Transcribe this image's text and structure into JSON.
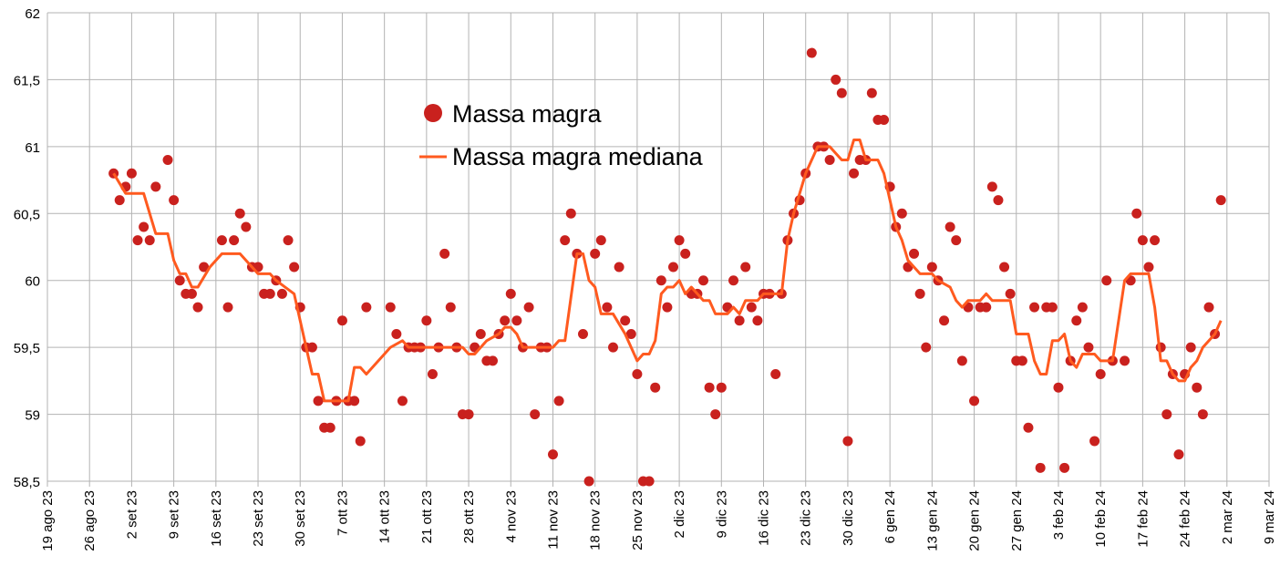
{
  "chart_data": {
    "type": "scatter",
    "title": "",
    "xlabel": "",
    "ylabel": "",
    "x_unit": "days since 19 ago 23",
    "xlim": [
      0,
      203
    ],
    "ylim": [
      58.5,
      62
    ],
    "grid": true,
    "legend_position": "top-center",
    "y_ticks": [
      "58,5",
      "59",
      "59,5",
      "60",
      "60,5",
      "61",
      "61,5",
      "62"
    ],
    "y_tick_values": [
      58.5,
      59,
      59.5,
      60,
      60.5,
      61,
      61.5,
      62
    ],
    "x_ticks": [
      "19 ago 23",
      "26 ago 23",
      "2 set 23",
      "9 set 23",
      "16 set 23",
      "23 set 23",
      "30 set 23",
      "7 ott 23",
      "14 ott 23",
      "21 ott 23",
      "28 ott 23",
      "4 nov 23",
      "11 nov 23",
      "18 nov 23",
      "25 nov 23",
      "2 dic 23",
      "9 dic 23",
      "16 dic 23",
      "23 dic 23",
      "30 dic 23",
      "6 gen 24",
      "13 gen 24",
      "20 gen 24",
      "27 gen 24",
      "3 feb 24",
      "10 feb 24",
      "17 feb 24",
      "24 feb 24",
      "2 mar 24",
      "9 mar 24"
    ],
    "colors": {
      "points": "#c9211e",
      "median": "#ff5a1f",
      "grid": "#b3b3b3"
    },
    "series": [
      {
        "name": "Massa magra",
        "kind": "scatter",
        "points": [
          [
            11,
            60.8
          ],
          [
            12,
            60.6
          ],
          [
            13,
            60.7
          ],
          [
            14,
            60.8
          ],
          [
            15,
            60.3
          ],
          [
            16,
            60.4
          ],
          [
            17,
            60.3
          ],
          [
            18,
            60.7
          ],
          [
            20,
            60.9
          ],
          [
            21,
            60.6
          ],
          [
            22,
            60.0
          ],
          [
            23,
            59.9
          ],
          [
            24,
            59.9
          ],
          [
            25,
            59.8
          ],
          [
            26,
            60.1
          ],
          [
            29,
            60.3
          ],
          [
            30,
            59.8
          ],
          [
            31,
            60.3
          ],
          [
            32,
            60.5
          ],
          [
            33,
            60.4
          ],
          [
            34,
            60.1
          ],
          [
            35,
            60.1
          ],
          [
            36,
            59.9
          ],
          [
            37,
            59.9
          ],
          [
            38,
            60.0
          ],
          [
            39,
            59.9
          ],
          [
            40,
            60.3
          ],
          [
            41,
            60.1
          ],
          [
            42,
            59.8
          ],
          [
            43,
            59.5
          ],
          [
            44,
            59.5
          ],
          [
            45,
            59.1
          ],
          [
            46,
            58.9
          ],
          [
            47,
            58.9
          ],
          [
            48,
            59.1
          ],
          [
            49,
            59.7
          ],
          [
            50,
            59.1
          ],
          [
            51,
            59.1
          ],
          [
            52,
            58.8
          ],
          [
            53,
            59.8
          ],
          [
            57,
            59.8
          ],
          [
            58,
            59.6
          ],
          [
            59,
            59.1
          ],
          [
            60,
            59.5
          ],
          [
            61,
            59.5
          ],
          [
            62,
            59.5
          ],
          [
            63,
            59.7
          ],
          [
            64,
            59.3
          ],
          [
            65,
            59.5
          ],
          [
            66,
            60.2
          ],
          [
            67,
            59.8
          ],
          [
            68,
            59.5
          ],
          [
            69,
            59.0
          ],
          [
            70,
            59.0
          ],
          [
            71,
            59.5
          ],
          [
            72,
            59.6
          ],
          [
            73,
            59.4
          ],
          [
            74,
            59.4
          ],
          [
            75,
            59.6
          ],
          [
            76,
            59.7
          ],
          [
            77,
            59.9
          ],
          [
            78,
            59.7
          ],
          [
            79,
            59.5
          ],
          [
            80,
            59.8
          ],
          [
            81,
            59.0
          ],
          [
            82,
            59.5
          ],
          [
            83,
            59.5
          ],
          [
            84,
            58.7
          ],
          [
            85,
            59.1
          ],
          [
            86,
            60.3
          ],
          [
            87,
            60.5
          ],
          [
            88,
            60.2
          ],
          [
            89,
            59.6
          ],
          [
            90,
            58.5
          ],
          [
            91,
            60.2
          ],
          [
            92,
            60.3
          ],
          [
            93,
            59.8
          ],
          [
            94,
            59.5
          ],
          [
            95,
            60.1
          ],
          [
            96,
            59.7
          ],
          [
            97,
            59.6
          ],
          [
            98,
            59.3
          ],
          [
            99,
            58.5
          ],
          [
            100,
            58.5
          ],
          [
            101,
            59.2
          ],
          [
            102,
            60.0
          ],
          [
            103,
            59.8
          ],
          [
            104,
            60.1
          ],
          [
            105,
            60.3
          ],
          [
            106,
            60.2
          ],
          [
            107,
            59.9
          ],
          [
            108,
            59.9
          ],
          [
            109,
            60.0
          ],
          [
            110,
            59.2
          ],
          [
            111,
            59.0
          ],
          [
            112,
            59.2
          ],
          [
            113,
            59.8
          ],
          [
            114,
            60.0
          ],
          [
            115,
            59.7
          ],
          [
            116,
            60.1
          ],
          [
            117,
            59.8
          ],
          [
            118,
            59.7
          ],
          [
            119,
            59.9
          ],
          [
            120,
            59.9
          ],
          [
            121,
            59.3
          ],
          [
            122,
            59.9
          ],
          [
            123,
            60.3
          ],
          [
            124,
            60.5
          ],
          [
            125,
            60.6
          ],
          [
            126,
            60.8
          ],
          [
            127,
            61.7
          ],
          [
            128,
            61.0
          ],
          [
            129,
            61.0
          ],
          [
            130,
            60.9
          ],
          [
            131,
            61.5
          ],
          [
            132,
            61.4
          ],
          [
            133,
            58.8
          ],
          [
            134,
            60.8
          ],
          [
            135,
            60.9
          ],
          [
            136,
            60.9
          ],
          [
            137,
            61.4
          ],
          [
            138,
            61.2
          ],
          [
            139,
            61.2
          ],
          [
            140,
            60.7
          ],
          [
            141,
            60.4
          ],
          [
            142,
            60.5
          ],
          [
            143,
            60.1
          ],
          [
            144,
            60.2
          ],
          [
            145,
            59.9
          ],
          [
            146,
            59.5
          ],
          [
            147,
            60.1
          ],
          [
            148,
            60.0
          ],
          [
            149,
            59.7
          ],
          [
            150,
            60.4
          ],
          [
            151,
            60.3
          ],
          [
            152,
            59.4
          ],
          [
            153,
            59.8
          ],
          [
            154,
            59.1
          ],
          [
            155,
            59.8
          ],
          [
            156,
            59.8
          ],
          [
            157,
            60.7
          ],
          [
            158,
            60.6
          ],
          [
            159,
            60.1
          ],
          [
            160,
            59.9
          ],
          [
            161,
            59.4
          ],
          [
            162,
            59.4
          ],
          [
            163,
            58.9
          ],
          [
            164,
            59.8
          ],
          [
            165,
            58.6
          ],
          [
            166,
            59.8
          ],
          [
            167,
            59.8
          ],
          [
            168,
            59.2
          ],
          [
            169,
            58.6
          ],
          [
            170,
            59.4
          ],
          [
            171,
            59.7
          ],
          [
            172,
            59.8
          ],
          [
            173,
            59.5
          ],
          [
            174,
            58.8
          ],
          [
            175,
            59.3
          ],
          [
            176,
            60.0
          ],
          [
            177,
            59.4
          ],
          [
            179,
            59.4
          ],
          [
            180,
            60.0
          ],
          [
            181,
            60.5
          ],
          [
            182,
            60.3
          ],
          [
            183,
            60.1
          ],
          [
            184,
            60.3
          ],
          [
            185,
            59.5
          ],
          [
            186,
            59.0
          ],
          [
            187,
            59.3
          ],
          [
            188,
            58.7
          ],
          [
            189,
            59.3
          ],
          [
            190,
            59.5
          ],
          [
            191,
            59.2
          ],
          [
            192,
            59.0
          ],
          [
            193,
            59.8
          ],
          [
            194,
            59.6
          ],
          [
            195,
            60.6
          ]
        ]
      },
      {
        "name": "Massa magra mediana",
        "kind": "line",
        "points": [
          [
            11,
            60.8
          ],
          [
            13,
            60.65
          ],
          [
            16,
            60.65
          ],
          [
            18,
            60.35
          ],
          [
            20,
            60.35
          ],
          [
            21,
            60.15
          ],
          [
            22,
            60.05
          ],
          [
            23,
            60.05
          ],
          [
            24,
            59.95
          ],
          [
            25,
            59.95
          ],
          [
            27,
            60.1
          ],
          [
            29,
            60.2
          ],
          [
            32,
            60.2
          ],
          [
            34,
            60.1
          ],
          [
            35,
            60.05
          ],
          [
            37,
            60.05
          ],
          [
            38,
            60.0
          ],
          [
            41,
            59.9
          ],
          [
            42,
            59.7
          ],
          [
            43,
            59.5
          ],
          [
            44,
            59.3
          ],
          [
            45,
            59.3
          ],
          [
            46,
            59.1
          ],
          [
            48,
            59.1
          ],
          [
            49,
            59.1
          ],
          [
            50,
            59.1
          ],
          [
            51,
            59.35
          ],
          [
            52,
            59.35
          ],
          [
            53,
            59.3
          ],
          [
            57,
            59.5
          ],
          [
            59,
            59.55
          ],
          [
            60,
            59.5
          ],
          [
            67,
            59.5
          ],
          [
            69,
            59.5
          ],
          [
            70,
            59.45
          ],
          [
            71,
            59.45
          ],
          [
            73,
            59.55
          ],
          [
            75,
            59.6
          ],
          [
            76,
            59.65
          ],
          [
            77,
            59.65
          ],
          [
            78,
            59.6
          ],
          [
            79,
            59.5
          ],
          [
            84,
            59.5
          ],
          [
            85,
            59.55
          ],
          [
            86,
            59.55
          ],
          [
            88,
            60.2
          ],
          [
            89,
            60.2
          ],
          [
            90,
            60.0
          ],
          [
            91,
            59.95
          ],
          [
            92,
            59.75
          ],
          [
            94,
            59.75
          ],
          [
            96,
            59.6
          ],
          [
            98,
            59.4
          ],
          [
            99,
            59.45
          ],
          [
            100,
            59.45
          ],
          [
            101,
            59.55
          ],
          [
            102,
            59.9
          ],
          [
            103,
            59.95
          ],
          [
            104,
            59.95
          ],
          [
            105,
            60.0
          ],
          [
            106,
            59.9
          ],
          [
            107,
            59.95
          ],
          [
            108,
            59.9
          ],
          [
            109,
            59.85
          ],
          [
            110,
            59.85
          ],
          [
            111,
            59.75
          ],
          [
            113,
            59.75
          ],
          [
            114,
            59.8
          ],
          [
            115,
            59.75
          ],
          [
            116,
            59.85
          ],
          [
            118,
            59.85
          ],
          [
            119,
            59.9
          ],
          [
            122,
            59.9
          ],
          [
            123,
            60.3
          ],
          [
            124,
            60.5
          ],
          [
            125,
            60.65
          ],
          [
            126,
            60.8
          ],
          [
            127,
            60.9
          ],
          [
            128,
            61.0
          ],
          [
            130,
            61.0
          ],
          [
            131,
            60.95
          ],
          [
            132,
            60.9
          ],
          [
            133,
            60.9
          ],
          [
            134,
            61.05
          ],
          [
            135,
            61.05
          ],
          [
            136,
            60.9
          ],
          [
            138,
            60.9
          ],
          [
            139,
            60.8
          ],
          [
            140,
            60.6
          ],
          [
            141,
            60.4
          ],
          [
            142,
            60.3
          ],
          [
            143,
            60.15
          ],
          [
            144,
            60.1
          ],
          [
            145,
            60.05
          ],
          [
            147,
            60.05
          ],
          [
            148,
            60.0
          ],
          [
            150,
            59.95
          ],
          [
            151,
            59.85
          ],
          [
            152,
            59.8
          ],
          [
            153,
            59.85
          ],
          [
            155,
            59.85
          ],
          [
            156,
            59.9
          ],
          [
            157,
            59.85
          ],
          [
            160,
            59.85
          ],
          [
            161,
            59.6
          ],
          [
            163,
            59.6
          ],
          [
            164,
            59.4
          ],
          [
            165,
            59.3
          ],
          [
            166,
            59.3
          ],
          [
            167,
            59.55
          ],
          [
            168,
            59.55
          ],
          [
            169,
            59.6
          ],
          [
            170,
            59.4
          ],
          [
            171,
            59.35
          ],
          [
            172,
            59.45
          ],
          [
            174,
            59.45
          ],
          [
            175,
            59.4
          ],
          [
            177,
            59.4
          ],
          [
            179,
            60.0
          ],
          [
            180,
            60.05
          ],
          [
            183,
            60.05
          ],
          [
            184,
            59.8
          ],
          [
            185,
            59.4
          ],
          [
            186,
            59.4
          ],
          [
            187,
            59.3
          ],
          [
            188,
            59.25
          ],
          [
            189,
            59.25
          ],
          [
            190,
            59.35
          ],
          [
            191,
            59.4
          ],
          [
            192,
            59.5
          ],
          [
            194,
            59.6
          ],
          [
            195,
            59.7
          ]
        ]
      }
    ]
  }
}
